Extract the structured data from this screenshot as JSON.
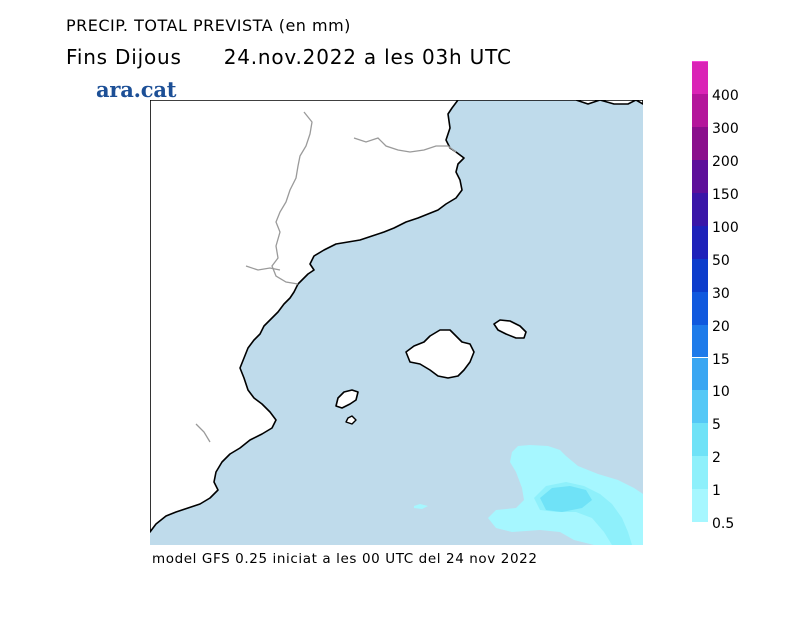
{
  "title": "PRECIP. TOTAL PREVISTA (en mm)",
  "subtitle": {
    "left": "Fins Dijous",
    "right": "24.nov.2022 a les 03h UTC"
  },
  "brand": "ara.cat",
  "footer": "model GFS 0.25 iniciat a les 00 UTC del 24 nov 2022",
  "legend": {
    "levels": [
      {
        "label": "0.5",
        "color": "#a6f7ff"
      },
      {
        "label": "1",
        "color": "#8ef0fb"
      },
      {
        "label": "2",
        "color": "#6fe2f7"
      },
      {
        "label": "5",
        "color": "#55c8f6"
      },
      {
        "label": "10",
        "color": "#3aa6f2"
      },
      {
        "label": "15",
        "color": "#1e7bea"
      },
      {
        "label": "20",
        "color": "#1059de"
      },
      {
        "label": "30",
        "color": "#0c3dcc"
      },
      {
        "label": "50",
        "color": "#1e22ba"
      },
      {
        "label": "100",
        "color": "#3a16a8"
      },
      {
        "label": "150",
        "color": "#5e0f9a"
      },
      {
        "label": "200",
        "color": "#8a0f8c"
      },
      {
        "label": "300",
        "color": "#b4169b"
      },
      {
        "label": "400",
        "color": "#da24b6"
      }
    ],
    "top_color": "#f449d6"
  },
  "map": {
    "sea_color": "#bfdbeb",
    "land_color": "#ffffff",
    "precip_light_color": "#a6f7ff",
    "precip_medium_color": "#8ef0fb",
    "precip_heavy_color": "#6fe2f7"
  }
}
